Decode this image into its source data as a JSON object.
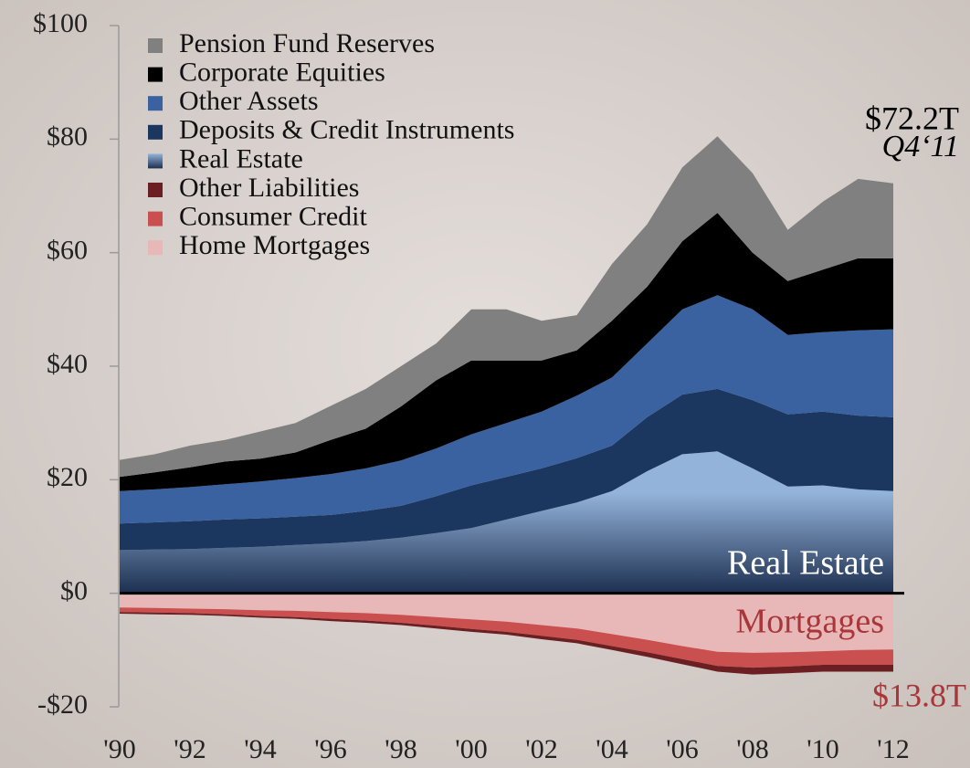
{
  "chart_data": {
    "type": "stacked_area",
    "x": [
      1990,
      1991,
      1992,
      1993,
      1994,
      1995,
      1996,
      1997,
      1998,
      1999,
      2000,
      2001,
      2002,
      2003,
      2004,
      2005,
      2006,
      2007,
      2008,
      2009,
      2010,
      2011,
      2012
    ],
    "xlim": [
      1990,
      2012
    ],
    "xticks": [
      {
        "value": 1990,
        "label": "'90"
      },
      {
        "value": 1992,
        "label": "'92"
      },
      {
        "value": 1994,
        "label": "'94"
      },
      {
        "value": 1996,
        "label": "'96"
      },
      {
        "value": 1998,
        "label": "'98"
      },
      {
        "value": 2000,
        "label": "'00"
      },
      {
        "value": 2002,
        "label": "'02"
      },
      {
        "value": 2004,
        "label": "'04"
      },
      {
        "value": 2006,
        "label": "'06"
      },
      {
        "value": 2008,
        "label": "'08"
      },
      {
        "value": 2010,
        "label": "'10"
      },
      {
        "value": 2012,
        "label": "'12"
      }
    ],
    "ylim": [
      -20,
      100
    ],
    "yticks": [
      {
        "value": -20,
        "label": "-$20"
      },
      {
        "value": 0,
        "label": "$0"
      },
      {
        "value": 20,
        "label": "$20"
      },
      {
        "value": 40,
        "label": "$40"
      },
      {
        "value": 60,
        "label": "$60"
      },
      {
        "value": 80,
        "label": "$80"
      },
      {
        "value": 100,
        "label": "$100"
      }
    ],
    "legend": "upper left",
    "series": [
      {
        "name": "Pension Fund Reserves",
        "color": "#808080",
        "values": [
          3.0,
          3.2,
          3.8,
          3.8,
          4.8,
          5.2,
          6,
          7,
          7.1,
          6.5,
          9,
          9,
          7,
          6.2,
          10,
          11,
          13,
          13.5,
          14,
          9,
          12,
          14,
          13.2
        ]
      },
      {
        "name": "Corporate Equities",
        "color": "#000000",
        "values": [
          2.5,
          3,
          3.5,
          4,
          4,
          4.5,
          6,
          7,
          9.5,
          12,
          13,
          11,
          9,
          8,
          10,
          10,
          12,
          14.5,
          10,
          9.5,
          11,
          12.7,
          12.5
        ]
      },
      {
        "name": "Other Assets",
        "color": "#3a62a0",
        "values": [
          5.7,
          5.8,
          6,
          6.2,
          6.5,
          6.8,
          7.2,
          7.5,
          8,
          8.4,
          9,
          9.5,
          10,
          11,
          12,
          13,
          15,
          16.5,
          16,
          14,
          14,
          15,
          15.5
        ]
      },
      {
        "name": "Deposits & Credit Instruments",
        "color": "#1b365f",
        "values": [
          4.7,
          4.8,
          4.9,
          5.0,
          5.0,
          5.0,
          5.0,
          5.3,
          5.6,
          6.5,
          7.5,
          7.5,
          7.5,
          7.8,
          8,
          9.5,
          10.5,
          11,
          12,
          12.7,
          13,
          13,
          13
        ]
      },
      {
        "name": "Real Estate",
        "color": "#94b3da",
        "values": [
          7.6,
          7.7,
          7.8,
          8.0,
          8.2,
          8.5,
          8.8,
          9.2,
          9.8,
          10.6,
          11.5,
          13,
          14.5,
          16,
          18,
          21.5,
          24.5,
          25,
          22,
          18.8,
          19,
          18.3,
          18
        ]
      },
      {
        "name": "Other Liabilities",
        "color": "#6b1f22",
        "values": [
          -0.3,
          -0.3,
          -0.3,
          -0.3,
          -0.3,
          -0.3,
          -0.4,
          -0.4,
          -0.4,
          -0.5,
          -0.5,
          -0.5,
          -0.6,
          -0.6,
          -0.7,
          -0.8,
          -0.9,
          -1,
          -1.2,
          -1.2,
          -1.2,
          -1.2,
          -1.2
        ]
      },
      {
        "name": "Consumer Credit",
        "color": "#c9504f",
        "values": [
          -0.8,
          -0.8,
          -0.8,
          -0.9,
          -1,
          -1.1,
          -1.2,
          -1.3,
          -1.4,
          -1.5,
          -1.7,
          -1.8,
          -1.9,
          -2,
          -2.1,
          -2.2,
          -2.3,
          -2.5,
          -2.6,
          -2.5,
          -2.4,
          -2.6,
          -2.7
        ]
      },
      {
        "name": "Home Mortgages",
        "color": "#e8b8b8",
        "values": [
          -2.5,
          -2.6,
          -2.7,
          -2.8,
          -3,
          -3.1,
          -3.3,
          -3.5,
          -3.8,
          -4.2,
          -4.6,
          -5,
          -5.6,
          -6.2,
          -7.2,
          -8.2,
          -9.3,
          -10.3,
          -10.5,
          -10.4,
          -10.2,
          -10,
          -9.9
        ]
      }
    ],
    "annotations": [
      "$72.2T",
      "Q4‘11",
      "Real Estate",
      "Mortgages",
      "$13.8T"
    ]
  }
}
